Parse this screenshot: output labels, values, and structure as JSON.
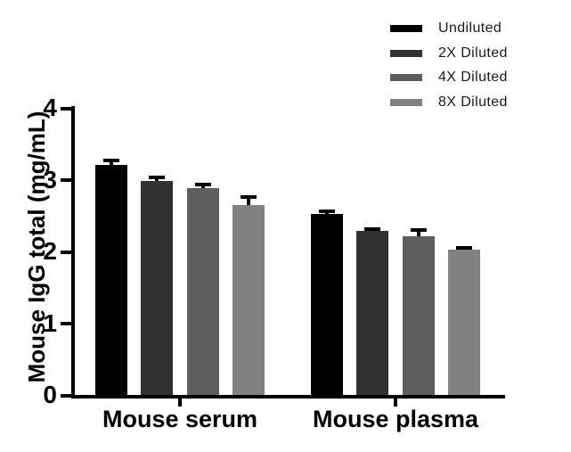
{
  "chart_data": {
    "type": "bar",
    "title": "",
    "ylabel": "Mouse IgG total (mg/mL)",
    "xlabel": "",
    "categories": [
      "Mouse serum",
      "Mouse plasma"
    ],
    "series": [
      {
        "name": "Undiluted",
        "color": "#000000",
        "values": [
          3.21,
          2.52
        ],
        "errors": [
          0.08,
          0.06
        ]
      },
      {
        "name": "2X Diluted",
        "color": "#313131",
        "values": [
          2.98,
          2.28
        ],
        "errors": [
          0.07,
          0.06
        ]
      },
      {
        "name": "4X Diluted",
        "color": "#5e5e5e",
        "values": [
          2.88,
          2.21
        ],
        "errors": [
          0.08,
          0.11
        ]
      },
      {
        "name": "8X Diluted",
        "color": "#818181",
        "values": [
          2.65,
          2.03
        ],
        "errors": [
          0.13,
          0.05
        ]
      }
    ],
    "ylim": [
      0,
      4
    ],
    "yticks": [
      "0",
      "1",
      "2",
      "3",
      "4"
    ],
    "grid": false,
    "legend_position": "top-right",
    "error_bars": "upper-only",
    "axis_color": "#000000",
    "background": "#ffffff"
  }
}
